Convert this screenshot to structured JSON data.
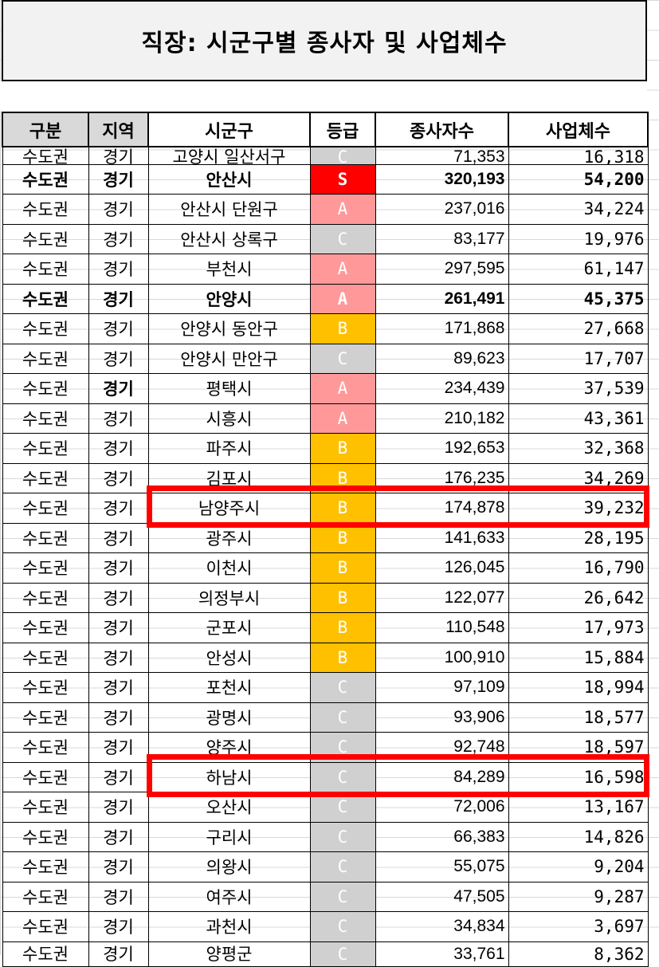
{
  "title": "직장: 시군구별 종사자 및 사업체수",
  "columns": [
    "구분",
    "지역",
    "시군구",
    "등급",
    "종사자수",
    "사업체수"
  ],
  "colors": {
    "grade_S": "#ff0000",
    "grade_A": "#ff9999",
    "grade_B": "#ffc000",
    "grade_C": "#d0d0d0",
    "highlight": "#ff0000"
  },
  "rows": [
    {
      "region_type": "수도권",
      "region": "경기",
      "district": "고양시 일산서구",
      "grade": "C",
      "employees": "71,353",
      "businesses": "16,318",
      "partial": "top"
    },
    {
      "region_type": "수도권",
      "region": "경기",
      "district": "안산시",
      "grade": "S",
      "employees": "320,193",
      "businesses": "54,200",
      "bold": true
    },
    {
      "region_type": "수도권",
      "region": "경기",
      "district": "안산시 단원구",
      "grade": "A",
      "employees": "237,016",
      "businesses": "34,224"
    },
    {
      "region_type": "수도권",
      "region": "경기",
      "district": "안산시 상록구",
      "grade": "C",
      "employees": "83,177",
      "businesses": "19,976"
    },
    {
      "region_type": "수도권",
      "region": "경기",
      "district": "부천시",
      "grade": "A",
      "employees": "297,595",
      "businesses": "61,147"
    },
    {
      "region_type": "수도권",
      "region": "경기",
      "district": "안양시",
      "grade": "A",
      "employees": "261,491",
      "businesses": "45,375",
      "bold": true
    },
    {
      "region_type": "수도권",
      "region": "경기",
      "district": "안양시 동안구",
      "grade": "B",
      "employees": "171,868",
      "businesses": "27,668"
    },
    {
      "region_type": "수도권",
      "region": "경기",
      "district": "안양시 만안구",
      "grade": "C",
      "employees": "89,623",
      "businesses": "17,707"
    },
    {
      "region_type": "수도권",
      "region": "경기",
      "district": "평택시",
      "grade": "A",
      "employees": "234,439",
      "businesses": "37,539",
      "region_bold": true
    },
    {
      "region_type": "수도권",
      "region": "경기",
      "district": "시흥시",
      "grade": "A",
      "employees": "210,182",
      "businesses": "43,361"
    },
    {
      "region_type": "수도권",
      "region": "경기",
      "district": "파주시",
      "grade": "B",
      "employees": "192,653",
      "businesses": "32,368"
    },
    {
      "region_type": "수도권",
      "region": "경기",
      "district": "김포시",
      "grade": "B",
      "employees": "176,235",
      "businesses": "34,269"
    },
    {
      "region_type": "수도권",
      "region": "경기",
      "district": "남양주시",
      "grade": "B",
      "employees": "174,878",
      "businesses": "39,232",
      "highlighted": true
    },
    {
      "region_type": "수도권",
      "region": "경기",
      "district": "광주시",
      "grade": "B",
      "employees": "141,633",
      "businesses": "28,195"
    },
    {
      "region_type": "수도권",
      "region": "경기",
      "district": "이천시",
      "grade": "B",
      "employees": "126,045",
      "businesses": "16,790"
    },
    {
      "region_type": "수도권",
      "region": "경기",
      "district": "의정부시",
      "grade": "B",
      "employees": "122,077",
      "businesses": "26,642"
    },
    {
      "region_type": "수도권",
      "region": "경기",
      "district": "군포시",
      "grade": "B",
      "employees": "110,548",
      "businesses": "17,973"
    },
    {
      "region_type": "수도권",
      "region": "경기",
      "district": "안성시",
      "grade": "B",
      "employees": "100,910",
      "businesses": "15,884"
    },
    {
      "region_type": "수도권",
      "region": "경기",
      "district": "포천시",
      "grade": "C",
      "employees": "97,109",
      "businesses": "18,994"
    },
    {
      "region_type": "수도권",
      "region": "경기",
      "district": "광명시",
      "grade": "C",
      "employees": "93,906",
      "businesses": "18,577"
    },
    {
      "region_type": "수도권",
      "region": "경기",
      "district": "양주시",
      "grade": "C",
      "employees": "92,748",
      "businesses": "18,597"
    },
    {
      "region_type": "수도권",
      "region": "경기",
      "district": "하남시",
      "grade": "C",
      "employees": "84,289",
      "businesses": "16,598",
      "highlighted": true
    },
    {
      "region_type": "수도권",
      "region": "경기",
      "district": "오산시",
      "grade": "C",
      "employees": "72,006",
      "businesses": "13,167"
    },
    {
      "region_type": "수도권",
      "region": "경기",
      "district": "구리시",
      "grade": "C",
      "employees": "66,383",
      "businesses": "14,826"
    },
    {
      "region_type": "수도권",
      "region": "경기",
      "district": "의왕시",
      "grade": "C",
      "employees": "55,075",
      "businesses": "9,204"
    },
    {
      "region_type": "수도권",
      "region": "경기",
      "district": "여주시",
      "grade": "C",
      "employees": "47,505",
      "businesses": "9,287"
    },
    {
      "region_type": "수도권",
      "region": "경기",
      "district": "과천시",
      "grade": "C",
      "employees": "34,834",
      "businesses": "3,697"
    },
    {
      "region_type": "수도권",
      "region": "경기",
      "district": "양평군",
      "grade": "C",
      "employees": "33,761",
      "businesses": "8,362",
      "partial": "bottom"
    }
  ]
}
